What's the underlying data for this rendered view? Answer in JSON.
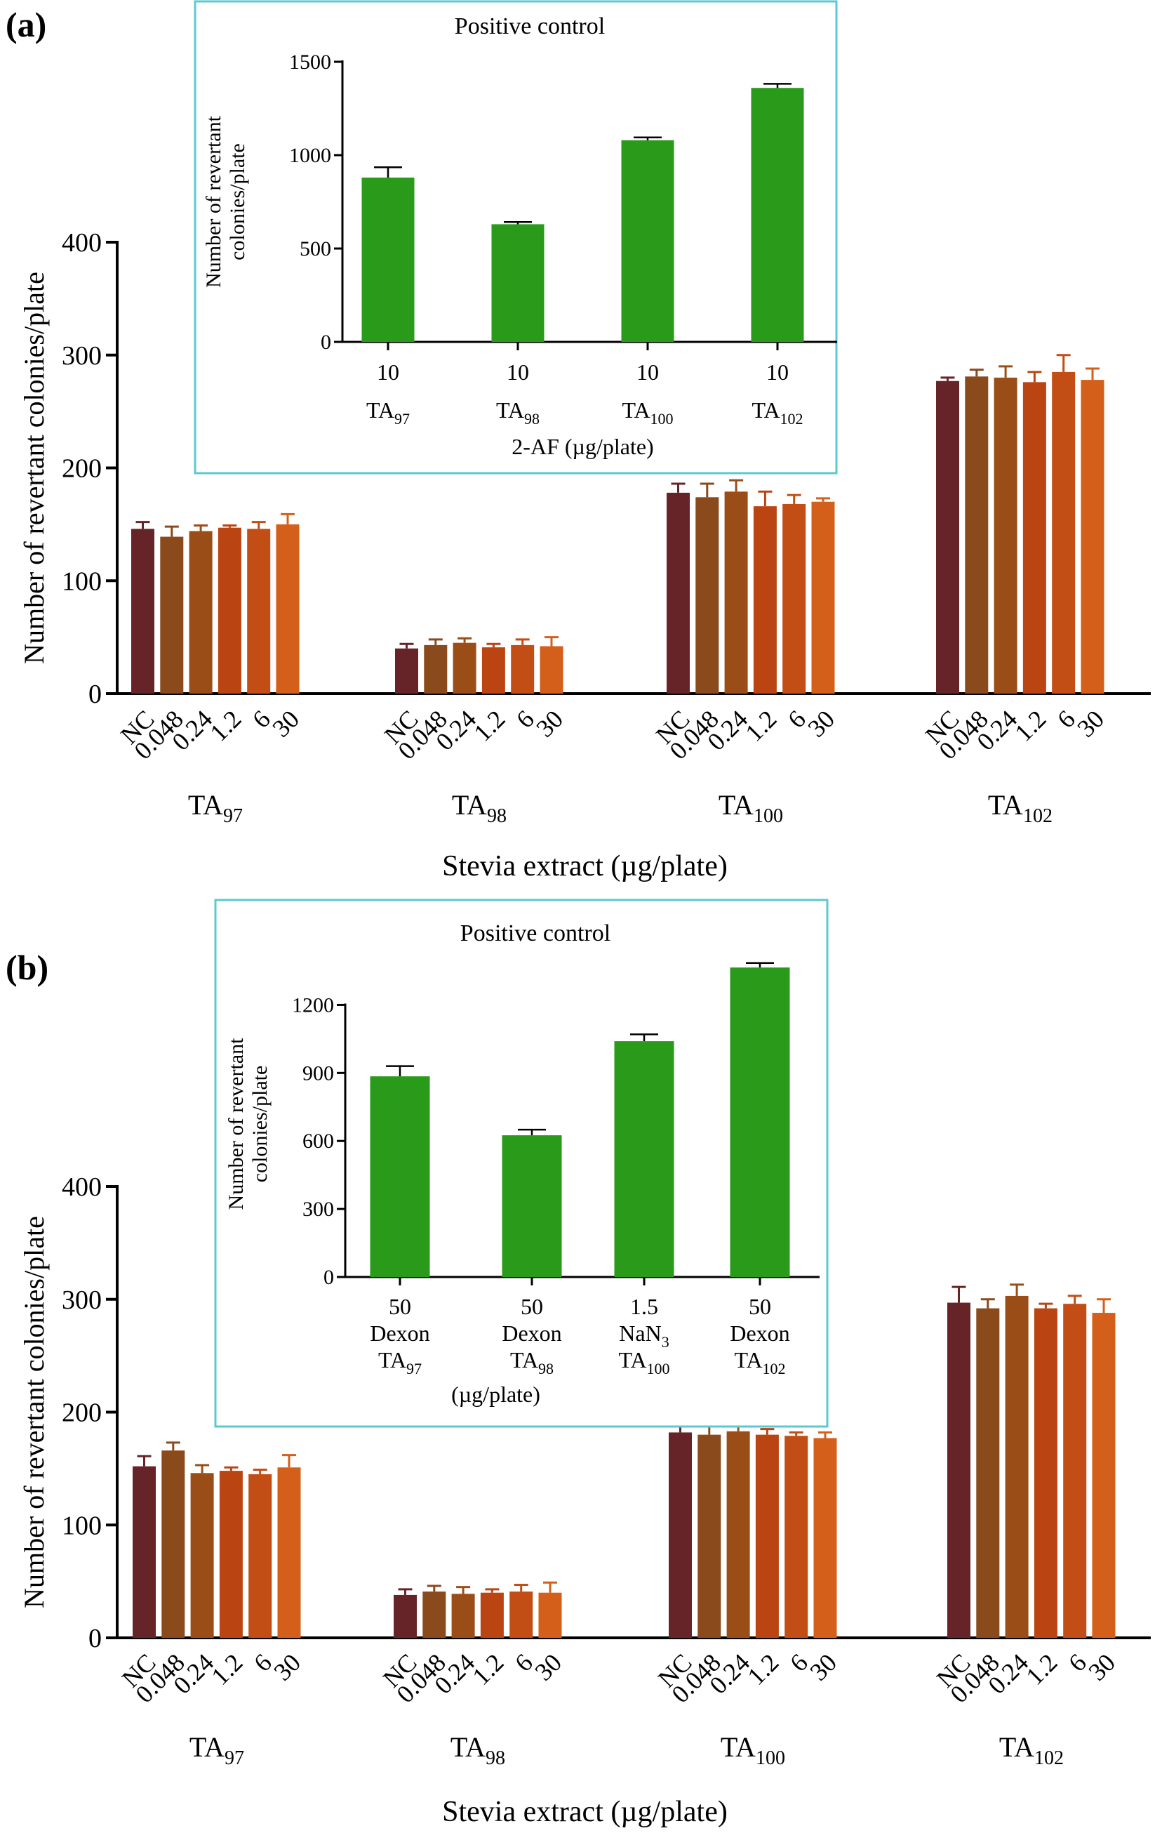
{
  "colors": {
    "doses": [
      "#672428",
      "#8a4a1c",
      "#9b4d17",
      "#ba4513",
      "#c24d15",
      "#d45f1a"
    ],
    "positive": "#2a9a1a",
    "inset_border": "#5bc9d0",
    "axis": "#000000"
  },
  "chart_data": [
    {
      "panel_label": "(a)",
      "type": "bar",
      "title": "",
      "xlabel": "Stevia extract (µg/plate)",
      "ylabel": "Number of revertant colonies/plate",
      "ylim": [
        0,
        400
      ],
      "yticks": [
        "0",
        "100",
        "200",
        "300",
        "400"
      ],
      "dose_labels": [
        "NC",
        "0.048",
        "0.24",
        "1.2",
        "6",
        "30"
      ],
      "groups": [
        {
          "strain": "TA",
          "sub": "97",
          "values": [
            146,
            139,
            144,
            147,
            146,
            150
          ],
          "errors": [
            6,
            9,
            5,
            2,
            6,
            9
          ]
        },
        {
          "strain": "TA",
          "sub": "98",
          "values": [
            40,
            43,
            45,
            41,
            43,
            42
          ],
          "errors": [
            4,
            5,
            4,
            3,
            5,
            8
          ]
        },
        {
          "strain": "TA",
          "sub": "100",
          "values": [
            178,
            174,
            179,
            166,
            168,
            170
          ],
          "errors": [
            8,
            12,
            10,
            13,
            8,
            3
          ]
        },
        {
          "strain": "TA",
          "sub": "102",
          "values": [
            277,
            281,
            280,
            276,
            285,
            278
          ],
          "errors": [
            3,
            6,
            10,
            9,
            15,
            10
          ]
        }
      ],
      "inset": {
        "type": "bar",
        "title": "Positive control",
        "ylabel": [
          "Number of revertant",
          "colonies/plate"
        ],
        "xlabel": "2-AF (µg/plate)",
        "ylim": [
          0,
          1500
        ],
        "yticks": [
          "0",
          "500",
          "1000",
          "1500"
        ],
        "bars": [
          {
            "dose": "10",
            "agent": "",
            "strain": "TA",
            "sub": "97",
            "value": 880,
            "error": 55
          },
          {
            "dose": "10",
            "agent": "",
            "strain": "TA",
            "sub": "98",
            "value": 630,
            "error": 12
          },
          {
            "dose": "10",
            "agent": "",
            "strain": "TA",
            "sub": "100",
            "value": 1080,
            "error": 15
          },
          {
            "dose": "10",
            "agent": "",
            "strain": "TA",
            "sub": "102",
            "value": 1360,
            "error": 22
          }
        ]
      }
    },
    {
      "panel_label": "(b)",
      "type": "bar",
      "title": "",
      "xlabel": "Stevia extract (µg/plate)",
      "ylabel": "Number of revertant colonies/plate",
      "ylim": [
        0,
        400
      ],
      "yticks": [
        "0",
        "100",
        "200",
        "300",
        "400"
      ],
      "dose_labels": [
        "NC",
        "0.048",
        "0.24",
        "1.2",
        "6",
        "30"
      ],
      "groups": [
        {
          "strain": "TA",
          "sub": "97",
          "values": [
            152,
            166,
            146,
            148,
            145,
            151
          ],
          "errors": [
            9,
            7,
            7,
            3,
            4,
            11
          ]
        },
        {
          "strain": "TA",
          "sub": "98",
          "values": [
            38,
            41,
            39,
            40,
            41,
            40
          ],
          "errors": [
            5,
            5,
            6,
            3,
            6,
            9
          ]
        },
        {
          "strain": "TA",
          "sub": "100",
          "values": [
            182,
            180,
            183,
            180,
            179,
            177
          ],
          "errors": [
            11,
            10,
            5,
            5,
            3,
            5
          ]
        },
        {
          "strain": "TA",
          "sub": "102",
          "values": [
            297,
            292,
            303,
            292,
            296,
            288
          ],
          "errors": [
            14,
            8,
            10,
            4,
            7,
            12
          ]
        }
      ],
      "inset": {
        "type": "bar",
        "title": "Positive control",
        "ylabel": [
          "Number of revertant",
          "colonies/plate"
        ],
        "xlabel": "(µg/plate)",
        "ylim": [
          0,
          1350
        ],
        "yticks": [
          "0",
          "300",
          "600",
          "900",
          "1200"
        ],
        "bars": [
          {
            "dose": "50",
            "agent": "Dexon",
            "strain": "TA",
            "sub": "97",
            "value": 885,
            "error": 45
          },
          {
            "dose": "50",
            "agent": "Dexon",
            "strain": "TA",
            "sub": "98",
            "value": 625,
            "error": 25
          },
          {
            "dose": "1.5",
            "agent": "NaN",
            "agent_sub": "3",
            "strain": "TA",
            "sub": "100",
            "value": 1040,
            "error": 30
          },
          {
            "dose": "50",
            "agent": "Dexon",
            "strain": "TA",
            "sub": "102",
            "value": 1365,
            "error": 20
          }
        ]
      }
    }
  ]
}
